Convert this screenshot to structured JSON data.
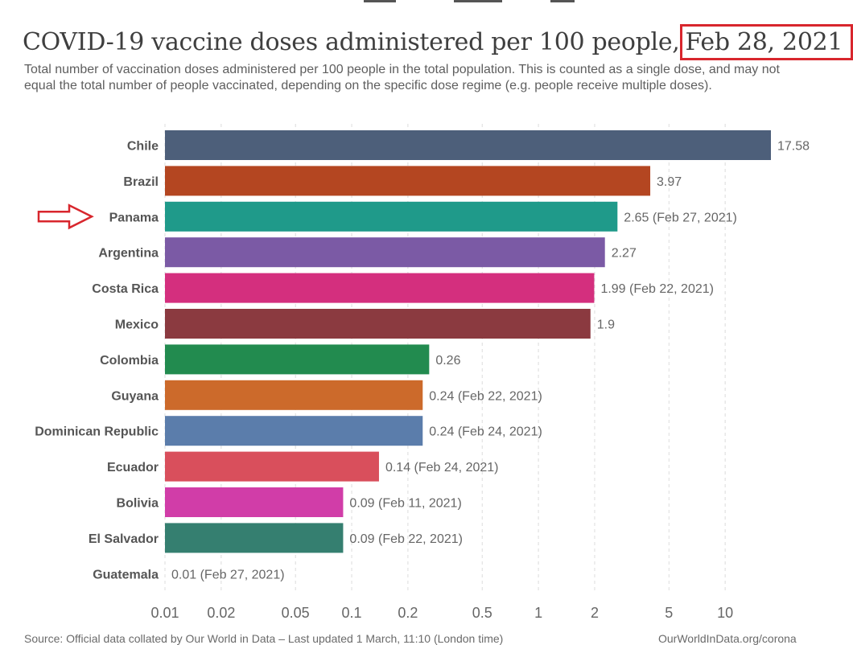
{
  "header": {
    "title_main": "COVID-19 vaccine doses administered per 100 people,",
    "title_date": "Feb 28, 2021",
    "subtitle": "Total number of vaccination doses administered per 100 people in the total population. This is counted as a single dose, and may not equal the total number of people vaccinated, depending on the specific dose regime (e.g. people receive multiple doses)."
  },
  "footer": {
    "source": "Source: Official data collated by Our World in Data – Last updated 1 March, 11:10 (London time)",
    "site": "OurWorldInData.org/corona"
  },
  "chart_data": {
    "type": "bar",
    "orientation": "horizontal",
    "x_scale": "log",
    "xlim": [
      0.01,
      17.58
    ],
    "grid": true,
    "highlighted_category": "Panama",
    "x_ticks": [
      {
        "value": 0.01,
        "label": "0.01"
      },
      {
        "value": 0.02,
        "label": "0.02"
      },
      {
        "value": 0.05,
        "label": "0.05"
      },
      {
        "value": 0.1,
        "label": "0.1"
      },
      {
        "value": 0.2,
        "label": "0.2"
      },
      {
        "value": 0.5,
        "label": "0.5"
      },
      {
        "value": 1,
        "label": "1"
      },
      {
        "value": 2,
        "label": "2"
      },
      {
        "value": 5,
        "label": "5"
      },
      {
        "value": 10,
        "label": "10"
      }
    ],
    "bars": [
      {
        "category": "Chile",
        "value": 17.58,
        "label": "17.58",
        "color": "#4d5f7a"
      },
      {
        "category": "Brazil",
        "value": 3.97,
        "label": "3.97",
        "color": "#b44621"
      },
      {
        "category": "Panama",
        "value": 2.65,
        "label": "2.65 (Feb 27, 2021)",
        "color": "#1f9a8a"
      },
      {
        "category": "Argentina",
        "value": 2.27,
        "label": "2.27",
        "color": "#7b5aa5"
      },
      {
        "category": "Costa Rica",
        "value": 1.99,
        "label": "1.99 (Feb 22, 2021)",
        "color": "#d42f7e"
      },
      {
        "category": "Mexico",
        "value": 1.9,
        "label": "1.9",
        "color": "#8b3a40"
      },
      {
        "category": "Colombia",
        "value": 0.26,
        "label": "0.26",
        "color": "#228b4f"
      },
      {
        "category": "Guyana",
        "value": 0.24,
        "label": "0.24 (Feb 22, 2021)",
        "color": "#cc6a2b"
      },
      {
        "category": "Dominican Republic",
        "value": 0.24,
        "label": "0.24 (Feb 24, 2021)",
        "color": "#5b7dab"
      },
      {
        "category": "Ecuador",
        "value": 0.14,
        "label": "0.14 (Feb 24, 2021)",
        "color": "#d94f5c"
      },
      {
        "category": "Bolivia",
        "value": 0.09,
        "label": "0.09 (Feb 11, 2021)",
        "color": "#d13da8"
      },
      {
        "category": "El Salvador",
        "value": 0.09,
        "label": "0.09 (Feb 22, 2021)",
        "color": "#357f70"
      },
      {
        "category": "Guatemala",
        "value": 0.01,
        "label": "0.01 (Feb 27, 2021)",
        "color": "#9a9a9a"
      }
    ]
  }
}
